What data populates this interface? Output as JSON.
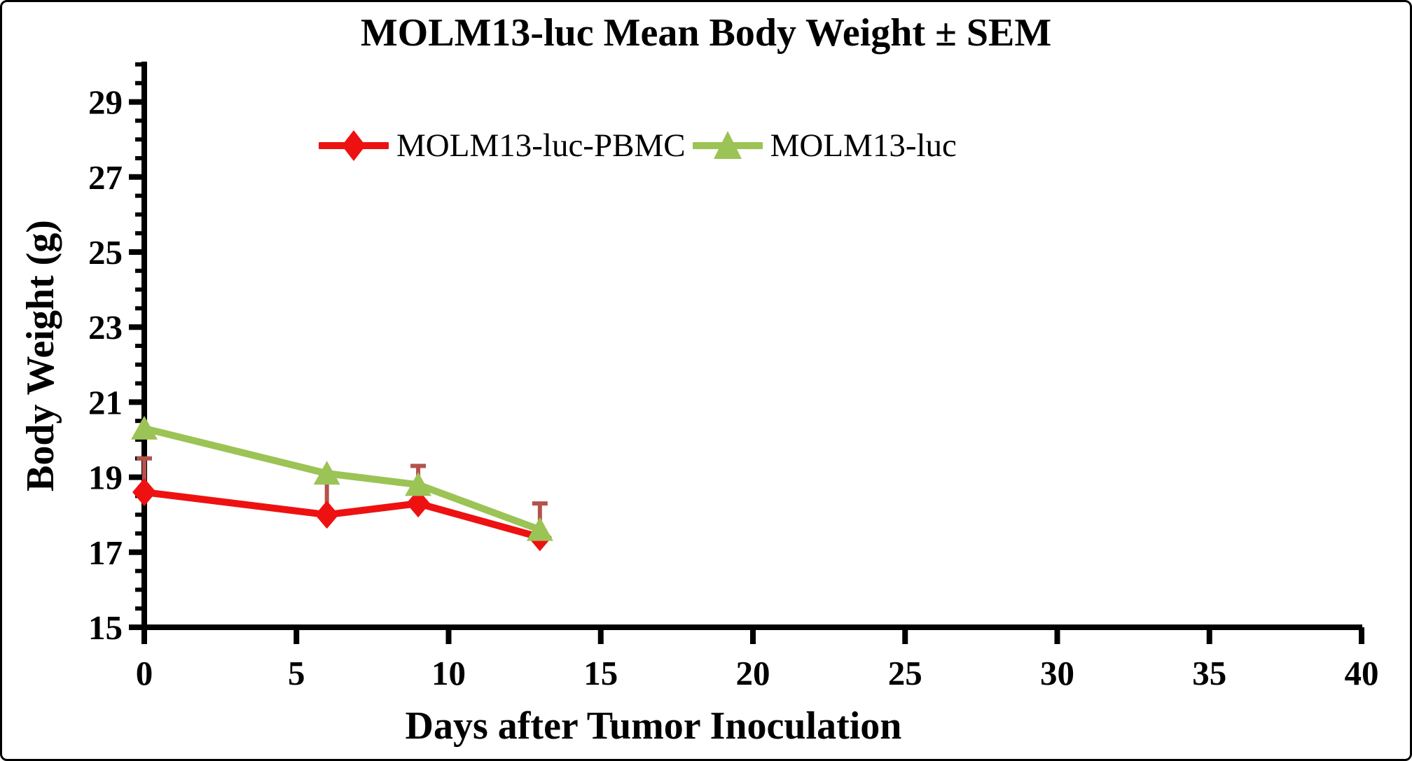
{
  "chart_data": {
    "type": "line",
    "title": "MOLM13-luc Mean Body Weight ± SEM",
    "xlabel": "Days after Tumor Inoculation",
    "ylabel": "Body Weight (g)",
    "xlim": [
      0,
      40
    ],
    "ylim": [
      15,
      30
    ],
    "x_ticks": [
      0,
      5,
      10,
      15,
      20,
      25,
      30,
      35,
      40
    ],
    "y_ticks": [
      15,
      17,
      19,
      21,
      23,
      25,
      27,
      29
    ],
    "y_minor_step": 0.5,
    "grid": false,
    "legend_position": "top-center",
    "axis_color": "#000000",
    "x": [
      0,
      6,
      9,
      13
    ],
    "series": [
      {
        "name": "MOLM13-luc-PBMC",
        "color": "#ee1111",
        "marker": "diamond",
        "values": [
          18.6,
          18.0,
          18.3,
          17.4
        ],
        "err_up": [
          0.9,
          1.0,
          1.0,
          0.9
        ],
        "err_color": "#b5524c"
      },
      {
        "name": "MOLM13-luc",
        "color": "#9cc355",
        "marker": "triangle",
        "values": [
          20.3,
          19.1,
          18.8,
          17.6
        ],
        "err_up": [
          0,
          0,
          0,
          0
        ],
        "err_color": "#9cc355"
      }
    ]
  }
}
